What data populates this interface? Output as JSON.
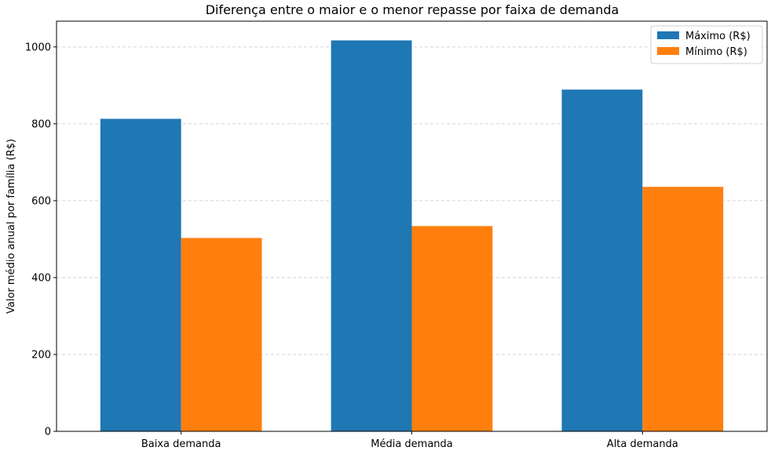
{
  "chart_data": {
    "type": "bar",
    "title": "Diferença entre o maior e o menor repasse por faixa de demanda",
    "xlabel": "",
    "ylabel": "Valor médio anual por família (R$)",
    "categories": [
      "Baixa demanda",
      "Média demanda",
      "Alta demanda"
    ],
    "series": [
      {
        "name": "Máximo (R$)",
        "color": "#1f77b4",
        "values": [
          813,
          1017,
          889
        ]
      },
      {
        "name": "Mínimo (R$)",
        "color": "#ff7f0e",
        "values": [
          503,
          534,
          636
        ]
      }
    ],
    "ylim": [
      0,
      1067
    ],
    "yticks": [
      0,
      200,
      400,
      600,
      800,
      1000
    ],
    "grid": "y-dashed",
    "legend_position": "top-right"
  }
}
